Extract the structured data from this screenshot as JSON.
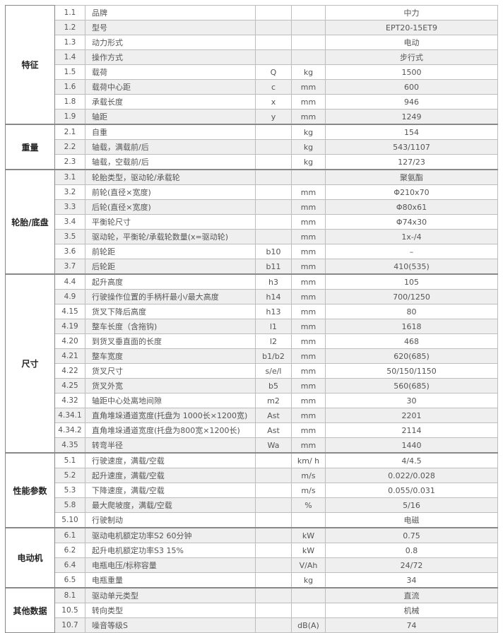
{
  "groups": [
    {
      "label": "特征",
      "rows": [
        [
          "1.1",
          "品牌",
          "",
          "",
          "中力"
        ],
        [
          "1.2",
          "型号",
          "",
          "",
          "EPT20-15ET9"
        ],
        [
          "1.3",
          "动力形式",
          "",
          "",
          "电动"
        ],
        [
          "1.4",
          "操作方式",
          "",
          "",
          "步行式"
        ],
        [
          "1.5",
          "载荷",
          "Q",
          "kg",
          "1500"
        ],
        [
          "1.6",
          "载荷中心距",
          "c",
          "mm",
          "600"
        ],
        [
          "1.8",
          "承载长度",
          "x",
          "mm",
          "946"
        ],
        [
          "1.9",
          "轴距",
          "y",
          "mm",
          "1249"
        ]
      ]
    },
    {
      "label": "重量",
      "rows": [
        [
          "2.1",
          "自重",
          "",
          "kg",
          "154"
        ],
        [
          "2.2",
          "轴载，满载前/后",
          "",
          "kg",
          "543/1107"
        ],
        [
          "2.3",
          "轴载，空载前/后",
          "",
          "kg",
          "127/23"
        ]
      ]
    },
    {
      "label": "轮胎/底盘",
      "rows": [
        [
          "3.1",
          "轮胎类型，驱动轮/承载轮",
          "",
          "",
          "聚氨酯"
        ],
        [
          "3.2",
          "前轮(直径×宽度)",
          "",
          "mm",
          "Φ210x70"
        ],
        [
          "3.3",
          "后轮(直径×宽度)",
          "",
          "mm",
          "Φ80x61"
        ],
        [
          "3.4",
          "平衡轮尺寸",
          "",
          "mm",
          "Φ74x30"
        ],
        [
          "3.5",
          "驱动轮，平衡轮/承载轮数量(x=驱动轮)",
          "",
          "mm",
          "1x-/4"
        ],
        [
          "3.6",
          "前轮距",
          "b10",
          "mm",
          "–"
        ],
        [
          "3.7",
          "后轮距",
          "b11",
          "mm",
          "410(535)"
        ]
      ]
    },
    {
      "label": "尺寸",
      "rows": [
        [
          "4.4",
          "起升高度",
          "h3",
          "mm",
          "105"
        ],
        [
          "4.9",
          "行驶操作位置的手柄杆最小/最大高度",
          "h14",
          "mm",
          "700/1250"
        ],
        [
          "4.15",
          "货叉下降后高度",
          "h13",
          "mm",
          "80"
        ],
        [
          "4.19",
          "整车长度（含拖钩)",
          "l1",
          "mm",
          "1618"
        ],
        [
          "4.20",
          "到货叉垂直面的长度",
          "l2",
          "mm",
          "468"
        ],
        [
          "4.21",
          "整车宽度",
          "b1/b2",
          "mm",
          "620(685)"
        ],
        [
          "4.22",
          "货叉尺寸",
          "s/e/l",
          "mm",
          "50/150/1150"
        ],
        [
          "4.25",
          "货叉外宽",
          "b5",
          "mm",
          "560(685)"
        ],
        [
          "4.32",
          "轴距中心处离地间隙",
          "m2",
          "mm",
          "30"
        ],
        [
          "4.34.1",
          "直角堆垛通道宽度(托盘为 1000长×1200宽)",
          "Ast",
          "mm",
          "2201"
        ],
        [
          "4.34.2",
          "直角堆垛通道宽度(托盘为800宽×1200长)",
          "Ast",
          "mm",
          "2114"
        ],
        [
          "4.35",
          "转弯半径",
          "Wa",
          "mm",
          "1440"
        ]
      ]
    },
    {
      "label": "性能参数",
      "rows": [
        [
          "5.1",
          "行驶速度，满载/空载",
          "",
          "km/ h",
          "4/4.5"
        ],
        [
          "5.2",
          "起升速度，满载/空载",
          "",
          "m/s",
          "0.022/0.028"
        ],
        [
          "5.3",
          "下降速度，满载/空载",
          "",
          "m/s",
          "0.055/0.031"
        ],
        [
          "5.8",
          "最大爬坡度，满载/空载",
          "",
          "%",
          "5/16"
        ],
        [
          "5.10",
          "行驶制动",
          "",
          "",
          "电磁"
        ]
      ]
    },
    {
      "label": "电动机",
      "rows": [
        [
          "6.1",
          "驱动电机额定功率S2 60分钟",
          "",
          "kW",
          "0.75"
        ],
        [
          "6.2",
          "起升电机额定功率S3 15%",
          "",
          "kW",
          "0.8"
        ],
        [
          "6.4",
          "电瓶电压/标称容量",
          "",
          "V/Ah",
          "24/72"
        ],
        [
          "6.5",
          "电瓶重量",
          "",
          "kg",
          "34"
        ]
      ]
    },
    {
      "label": "其他数据",
      "rows": [
        [
          "8.1",
          "驱动单元类型",
          "",
          "",
          "直流"
        ],
        [
          "10.5",
          "转向类型",
          "",
          "",
          "机械"
        ],
        [
          "10.7",
          "噪音等级S",
          "",
          "dB(A)",
          "74"
        ]
      ]
    }
  ]
}
